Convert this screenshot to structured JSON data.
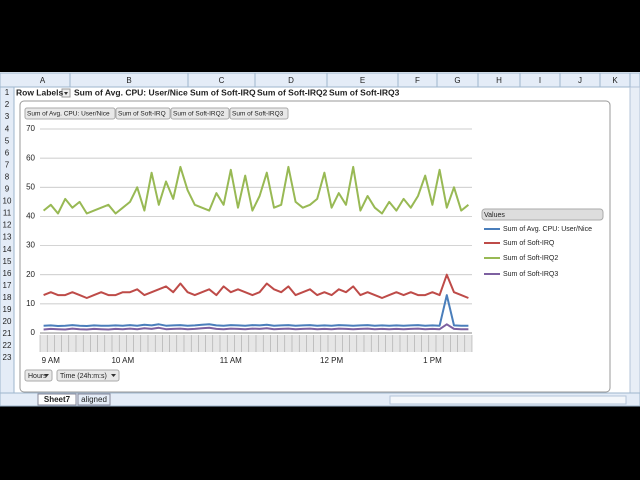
{
  "columns": [
    "A",
    "B",
    "C",
    "D",
    "E",
    "F",
    "G",
    "H",
    "I",
    "J",
    "K"
  ],
  "rows": [
    1,
    2,
    3,
    4,
    5,
    6,
    7,
    8,
    9,
    10,
    11,
    12,
    13,
    14,
    15,
    16,
    17,
    18,
    19,
    20,
    21,
    22,
    23
  ],
  "header_row": [
    "Row Labels",
    "Sum of Avg. CPU: User/Nice",
    "Sum of Soft-IRQ",
    "Sum of Soft-IRQ2",
    "Sum of Soft-IRQ3"
  ],
  "sheet_tabs": [
    "Sheet7",
    "aligned"
  ],
  "chart_data": {
    "type": "line",
    "legend_title": "Values",
    "legend": "right",
    "grid": true,
    "field_buttons": [
      "Hours",
      "Time (24h:m:s)"
    ],
    "categories": [
      null,
      "9 AM",
      null,
      null,
      null,
      null,
      null,
      null,
      null,
      null,
      null,
      "10 AM",
      null,
      null,
      null,
      null,
      null,
      null,
      null,
      null,
      null,
      null,
      null,
      null,
      null,
      null,
      "11 AM",
      null,
      null,
      null,
      null,
      null,
      null,
      null,
      null,
      null,
      null,
      null,
      null,
      null,
      "12 PM",
      null,
      null,
      null,
      null,
      null,
      null,
      null,
      null,
      null,
      null,
      null,
      null,
      null,
      "1 PM",
      null,
      null,
      null,
      null,
      null
    ],
    "ylim": [
      0,
      70
    ],
    "yticks": [
      0,
      10,
      20,
      30,
      40,
      50,
      60,
      70
    ],
    "series": [
      {
        "name": "Sum of Avg. CPU: User/Nice",
        "color": "#4a7ebb",
        "values": [
          2.5,
          2.6,
          2.4,
          2.5,
          2.7,
          2.5,
          2.4,
          2.6,
          2.5,
          2.5,
          2.6,
          2.5,
          2.7,
          2.5,
          2.8,
          2.6,
          3,
          2.5,
          2.6,
          2.7,
          2.5,
          2.6,
          2.8,
          3,
          2.6,
          2.5,
          2.7,
          2.6,
          2.5,
          2.7,
          2.6,
          2.8,
          2.5,
          2.6,
          2.7,
          2.5,
          2.6,
          2.7,
          2.5,
          2.6,
          2.5,
          2.7,
          2.6,
          2.5,
          2.6,
          2.7,
          2.5,
          2.6,
          2.5,
          2.6,
          2.5,
          2.6,
          2.7,
          2.5,
          2.6,
          2.5,
          13,
          2.6,
          2.5,
          2.5
        ]
      },
      {
        "name": "Sum of Soft-IRQ",
        "color": "#be4b48",
        "values": [
          13,
          14,
          13,
          13,
          14,
          13,
          12,
          13,
          14,
          13,
          13,
          14,
          14,
          15,
          13,
          14,
          15,
          16,
          14,
          17,
          14,
          13,
          14,
          15,
          13,
          16,
          14,
          15,
          14,
          13,
          14,
          17,
          15,
          14,
          16,
          13,
          14,
          15,
          13,
          14,
          13,
          15,
          14,
          16,
          13,
          14,
          13,
          12,
          13,
          14,
          13,
          14,
          13,
          13,
          14,
          13,
          20,
          14,
          13,
          12
        ]
      },
      {
        "name": "Sum of Soft-IRQ2",
        "color": "#98b954",
        "values": [
          42,
          44,
          41,
          46,
          43,
          45,
          41,
          42,
          43,
          44,
          41,
          43,
          45,
          50,
          42,
          55,
          44,
          52,
          46,
          57,
          49,
          44,
          43,
          42,
          48,
          44,
          56,
          43,
          54,
          42,
          47,
          55,
          43,
          44,
          57,
          45,
          43,
          44,
          46,
          55,
          43,
          48,
          44,
          57,
          42,
          47,
          43,
          41,
          45,
          42,
          46,
          43,
          47,
          54,
          44,
          56,
          43,
          50,
          42,
          44
        ]
      },
      {
        "name": "Sum of Soft-IRQ3",
        "color": "#7d60a0",
        "values": [
          1.2,
          1.4,
          1.3,
          1.2,
          1.5,
          1.3,
          1.2,
          1.4,
          1.3,
          1.2,
          1.4,
          1.3,
          1.5,
          1.3,
          1.6,
          1.4,
          1.8,
          1.3,
          1.4,
          1.5,
          1.3,
          1.4,
          1.6,
          1.8,
          1.4,
          1.3,
          1.5,
          1.4,
          1.3,
          1.5,
          1.4,
          1.6,
          1.3,
          1.4,
          1.5,
          1.3,
          1.4,
          1.5,
          1.3,
          1.4,
          1.3,
          1.5,
          1.4,
          1.3,
          1.4,
          1.5,
          1.3,
          1.4,
          1.3,
          1.4,
          1.3,
          1.4,
          1.5,
          1.3,
          1.4,
          1.3,
          3,
          1.4,
          1.3,
          1.3
        ]
      }
    ]
  }
}
